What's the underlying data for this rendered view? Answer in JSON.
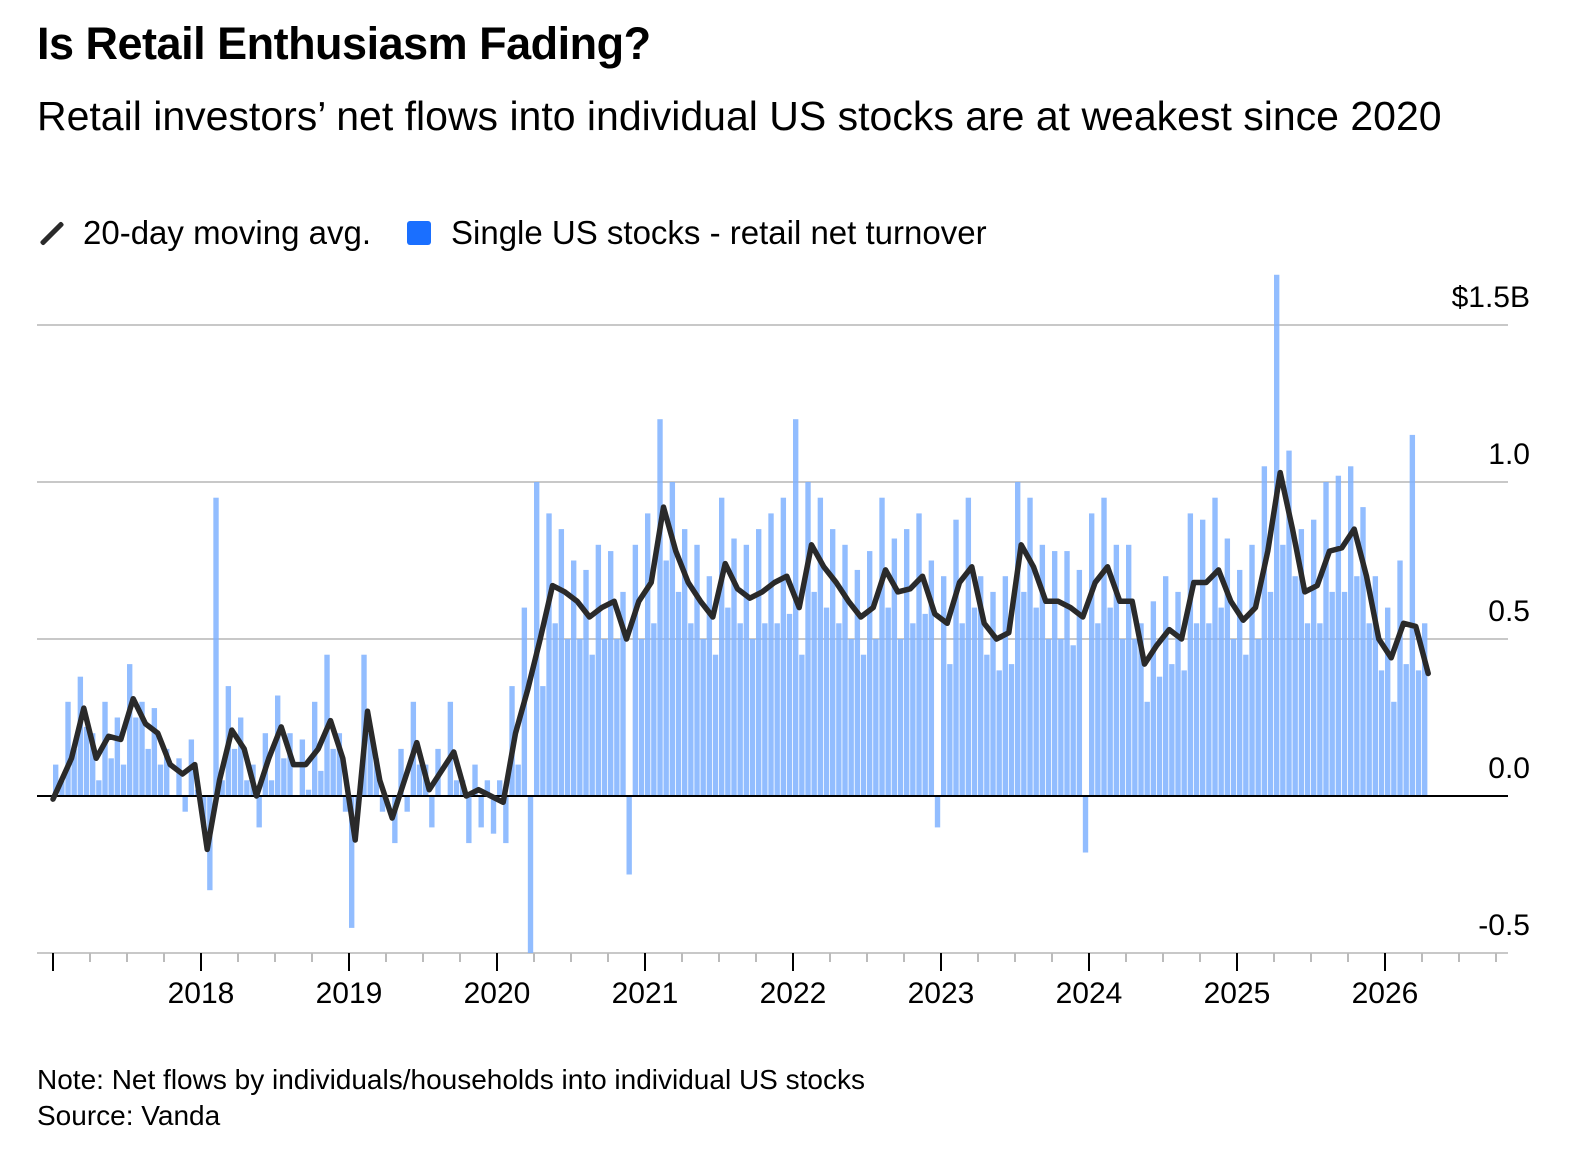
{
  "title": "Is Retail Enthusiasm Fading?",
  "subtitle": "Retail investors’ net flows into individual US stocks are at weakest since 2020",
  "legend": [
    {
      "label": "20-day moving avg.",
      "color": "#2a2a2a"
    },
    {
      "label": "Single US stocks - retail net turnover",
      "color": "#1a6fff"
    }
  ],
  "note": "Note: Net flows by individuals/households into individual US stocks",
  "source": "Source: Vanda",
  "chart_data": {
    "type": "bar",
    "title": "Is Retail Enthusiasm Fading?",
    "ylabel": "",
    "xlabel": "",
    "unit": "$B",
    "ylim": [
      -0.5,
      1.5
    ],
    "xlim": [
      2017.0,
      2027.0
    ],
    "y_ticks": [
      "$1.5B",
      "1.0",
      "0.5",
      "0.0",
      "-0.5"
    ],
    "y_tick_values": [
      1.5,
      1.0,
      0.5,
      0.0,
      -0.5
    ],
    "x_ticks": [
      "2018",
      "2019",
      "2020",
      "2021",
      "2022",
      "2023",
      "2024",
      "2025",
      "2026"
    ],
    "grid": true,
    "legend_position": "top-left",
    "bar_color": "#7fb2ff",
    "line_color": "#2a2a2a",
    "moving_avg": {
      "name": "20-day moving avg.",
      "start": "2017-01",
      "frequency": "monthly",
      "values": [
        -0.01,
        0.12,
        0.28,
        0.12,
        0.19,
        0.18,
        0.31,
        0.23,
        0.2,
        0.1,
        0.07,
        0.1,
        -0.17,
        0.05,
        0.21,
        0.15,
        0.0,
        0.12,
        0.22,
        0.1,
        0.1,
        0.15,
        0.24,
        0.12,
        -0.14,
        0.27,
        0.05,
        -0.07,
        0.05,
        0.17,
        0.02,
        0.08,
        0.14,
        0.0,
        0.02,
        0.0,
        -0.02,
        0.2,
        0.34,
        0.5,
        0.67,
        0.65,
        0.62,
        0.57,
        0.6,
        0.62,
        0.5,
        0.62,
        0.68,
        0.92,
        0.78,
        0.68,
        0.62,
        0.57,
        0.74,
        0.66,
        0.63,
        0.65,
        0.68,
        0.7,
        0.6,
        0.8,
        0.73,
        0.68,
        0.62,
        0.57,
        0.6,
        0.72,
        0.65,
        0.66,
        0.7,
        0.58,
        0.55,
        0.68,
        0.73,
        0.55,
        0.5,
        0.52,
        0.8,
        0.73,
        0.62,
        0.62,
        0.6,
        0.57,
        0.68,
        0.73,
        0.62,
        0.62,
        0.42,
        0.48,
        0.53,
        0.5,
        0.68,
        0.68,
        0.72,
        0.62,
        0.56,
        0.6,
        0.78,
        1.03,
        0.85,
        0.65,
        0.67,
        0.78,
        0.79,
        0.85,
        0.7,
        0.5,
        0.44,
        0.55,
        0.54,
        0.39
      ]
    },
    "net_turnover": {
      "name": "Single US stocks - retail net turnover",
      "start": "2017-01",
      "frequency": "semi-monthly",
      "values": [
        0.1,
        0.05,
        0.3,
        0.15,
        0.38,
        0.22,
        0.2,
        0.05,
        0.3,
        0.12,
        0.25,
        0.1,
        0.42,
        0.25,
        0.3,
        0.15,
        0.28,
        0.1,
        0.15,
        0.0,
        0.12,
        -0.05,
        0.18,
        0.02,
        -0.1,
        -0.3,
        0.95,
        0.05,
        0.35,
        0.15,
        0.25,
        0.05,
        0.1,
        -0.1,
        0.2,
        0.05,
        0.32,
        0.12,
        0.2,
        0.0,
        0.18,
        0.02,
        0.3,
        0.08,
        0.45,
        0.15,
        0.2,
        -0.05,
        -0.42,
        -0.05,
        0.45,
        0.2,
        0.12,
        -0.05,
        0.0,
        -0.15,
        0.15,
        -0.05,
        0.3,
        0.1,
        0.1,
        -0.1,
        0.15,
        0.0,
        0.3,
        0.05,
        0.05,
        -0.15,
        0.1,
        -0.1,
        0.05,
        -0.12,
        0.05,
        -0.15,
        0.35,
        0.1,
        0.6,
        -0.5,
        1.0,
        0.35,
        0.9,
        0.55,
        0.85,
        0.5,
        0.75,
        0.5,
        0.72,
        0.45,
        0.8,
        0.5,
        0.78,
        0.5,
        0.65,
        -0.25,
        0.8,
        0.5,
        0.9,
        0.55,
        1.2,
        0.75,
        1.0,
        0.65,
        0.85,
        0.55,
        0.8,
        0.5,
        0.7,
        0.45,
        0.95,
        0.6,
        0.82,
        0.55,
        0.8,
        0.5,
        0.85,
        0.55,
        0.9,
        0.55,
        0.95,
        0.58,
        1.2,
        0.45,
        1.0,
        0.65,
        0.95,
        0.6,
        0.85,
        0.55,
        0.8,
        0.5,
        0.72,
        0.45,
        0.78,
        0.5,
        0.95,
        0.6,
        0.82,
        0.5,
        0.85,
        0.55,
        0.9,
        0.58,
        0.75,
        -0.1,
        0.7,
        0.42,
        0.88,
        0.55,
        0.95,
        0.6,
        0.7,
        0.45,
        0.65,
        0.4,
        0.7,
        0.42,
        1.0,
        0.65,
        0.95,
        0.6,
        0.8,
        0.5,
        0.78,
        0.5,
        0.78,
        0.48,
        0.72,
        -0.18,
        0.9,
        0.55,
        0.95,
        0.6,
        0.8,
        0.5,
        0.8,
        0.5,
        0.55,
        0.3,
        0.62,
        0.38,
        0.7,
        0.42,
        0.65,
        0.4,
        0.9,
        0.55,
        0.88,
        0.55,
        0.95,
        0.6,
        0.82,
        0.5,
        0.72,
        0.45,
        0.8,
        0.5,
        1.05,
        0.65,
        1.66,
        0.8,
        1.1,
        0.7,
        0.85,
        0.55,
        0.88,
        0.55,
        1.0,
        0.65,
        1.02,
        0.65,
        1.05,
        0.7,
        0.92,
        0.55,
        0.7,
        0.4,
        0.6,
        0.3,
        0.75,
        0.42,
        1.15,
        0.4,
        0.55,
        0.0
      ]
    }
  }
}
